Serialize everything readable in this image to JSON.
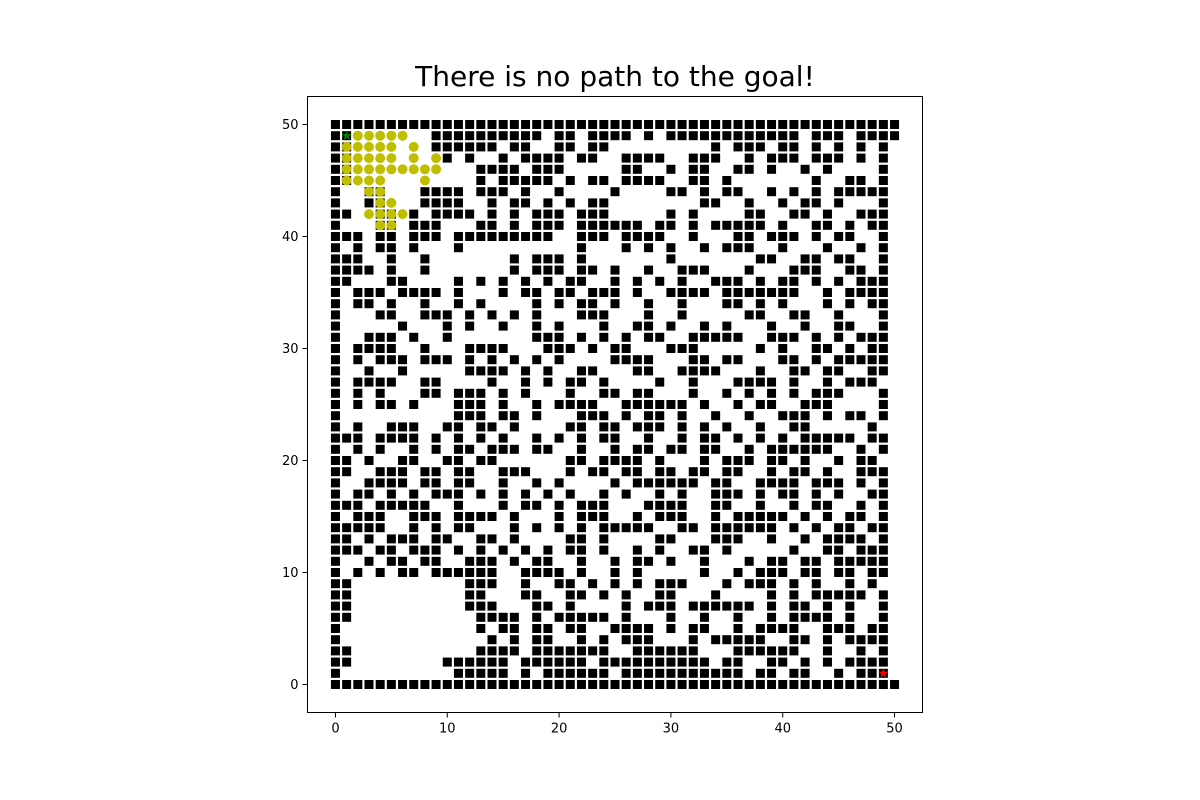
{
  "chart_data": {
    "type": "scatter",
    "title": "There is no path to the goal!",
    "xlabel": "",
    "ylabel": "",
    "xlim": [
      -2.5,
      52.5
    ],
    "ylim": [
      -2.5,
      52.5
    ],
    "xticks": [
      0,
      10,
      20,
      30,
      40,
      50
    ],
    "yticks": [
      0,
      10,
      20,
      30,
      40,
      50
    ],
    "grid": false,
    "legend": "none",
    "obstacle_grid_size": 51,
    "obstacle_rows_top_to_bottom": [
      "###################################################",
      "##.......##########.##.####.#.############.###.####",
      "##.......######.##..##.##.........#.###.##.#.#.#.#",
      "##........#.#..#.####.##..####..###..#.###.###.#.#",
      "##...........####.###.....##..#.##..##.#..#.#....#",
      "##...........#.#####.#.##.####..##.#.......#..##.#",
      "#..##...####.###.#..#....#....##.#.##..#.#.#.#####",
      "#..##...####..#.##.#.#.##........##..#..#.##.#...#",
      "##..##.#.####.#.#.###.###.....#.#....##..##.#..###",
      "#...##.###...##.#.###.######.##.#.#####.#..##.#.##",
      "###.##.###.#########..###.####..#...##.###.#.##..#",
      "#.#.##.#...#..........#...#.#.#..#.###..#...#..#.#",
      "###..#..#.......#.###.#.......#.......##..##.##..#",
      "####.#..#.......#.###.##.#..#..###...#...###..##.#",
      "##...##....#.#.#.#.#.##..#.#.#.#..###.#.##.#.#.###",
      "#.###.####.#...#.##.##.###.#..####.#######..#.####",
      "#.##.#..#..#.#....#.#.##.#..#..#...##.#.#...#.#.##",
      "#...##..###.#.#.#.#...###...#..#.....##..##..#...#",
      "#.....#...#.#..#..#.#...#..##.#..#.#...#..#..##..#",
      "#..###.#..#.......###.#.#.#.##..#####..###.#.#.###",
      "#.####..#...####...###.#.##...###.....#.#..##.#.##",
      "#.#.###.###.#.#.#.#.#....####...##.##...##.#.#####",
      "#..#..#.....####.#.#..##...##..####...#..##.##..##",
      "#.####..##....#..#.#.##.#....#..#...####.#..#.###.",
      "#.#.#...##.###.#.#...#..##.##...#..#.#.#.#.###...#",
      "#.#.##.#...###.#..#.####..######.#..#.##..###....#",
      "#..........###.##.#...###.#.##.#..#..#..###.#.##.#",
      "#.#..###..##.##.#....##.##.###.#.#.#..#..##.....#.",
      "###.####.#.#.#.#..#.#.#.##..#..#.##.#.#.#.#####.##",
      "#.#.#..#.#.##.###.##..#..#.##.##.##..#.######..#.#",
      "##.#..##..##.##......##.####.#...#.###.##.#..#.##.",
      "##..###.##.##..###...#.##.##.##.##.##..#.##.#..###",
      "#..####.##.##..#..#.#....#.######.##..####.###.#.#",
      "#.##.#.#.###.#.#.#.#.#..#.#..#.#..###.#.##.#.#..##",
      "###.#####..#...#.##.#.###...####..##..#..#.##..#.#",
      "#.###..###.####.#...#.###..#.###..#.#####.#.#.##.#",
      "#####..#.#.##...#.#.#.#.#####..##.######.#.#.##.##",
      "##.#.###.##..##.#....##.#....##...###..#..#.####.#",
      "###.##.###.#.#.#.#.#.##.#..#.#..##.#.....#..##.###",
      "#..#.##.##..###.#.##..#..#.##.#..#...#.##.##.#####",
      "#.#.#.##.######..####.#..#.#.....#..#.###.##.##.##",
      "##..........###..#..##.#.#.#.###...#.###.#.#..#.#.",
      "##..........##...##..##.#.#..##...#....#.#.#####.#",
      "##..........###...##.#....#.###.######.#.##.#.#..#",
      "##...........####.#.#####.#...#..#..#..#.####.#..#",
      "#............#.##.##.##..####.#.##..#.####..###.##",
      "#.............#.#.##..#.#.###...#.#####..##.#.####",
      "##...........####.#######..######...######..#..#.#",
      "##........######.######.##########.##..##.#.#.####",
      "#..........#####.#.######.###########.##.##..#.###",
      "###################################################"
    ],
    "explored_cells": [
      [
        2,
        49
      ],
      [
        3,
        49
      ],
      [
        4,
        49
      ],
      [
        5,
        49
      ],
      [
        6,
        49
      ],
      [
        1,
        48
      ],
      [
        2,
        48
      ],
      [
        3,
        48
      ],
      [
        4,
        48
      ],
      [
        5,
        48
      ],
      [
        7,
        48
      ],
      [
        1,
        47
      ],
      [
        2,
        47
      ],
      [
        3,
        47
      ],
      [
        4,
        47
      ],
      [
        5,
        47
      ],
      [
        7,
        47
      ],
      [
        9,
        47
      ],
      [
        1,
        46
      ],
      [
        2,
        46
      ],
      [
        3,
        46
      ],
      [
        4,
        46
      ],
      [
        5,
        46
      ],
      [
        6,
        46
      ],
      [
        7,
        46
      ],
      [
        8,
        46
      ],
      [
        9,
        46
      ],
      [
        1,
        45
      ],
      [
        2,
        45
      ],
      [
        3,
        45
      ],
      [
        4,
        45
      ],
      [
        8,
        45
      ],
      [
        3,
        44
      ],
      [
        4,
        44
      ],
      [
        4,
        43
      ],
      [
        5,
        43
      ],
      [
        3,
        42
      ],
      [
        4,
        42
      ],
      [
        5,
        42
      ],
      [
        6,
        42
      ],
      [
        4,
        41
      ],
      [
        5,
        41
      ]
    ],
    "start": [
      1,
      49
    ],
    "goal": [
      49,
      1
    ],
    "colors": {
      "obstacle": "#000000",
      "explored": "#bfbf00",
      "start": "#008000",
      "goal": "#ff0000"
    }
  }
}
